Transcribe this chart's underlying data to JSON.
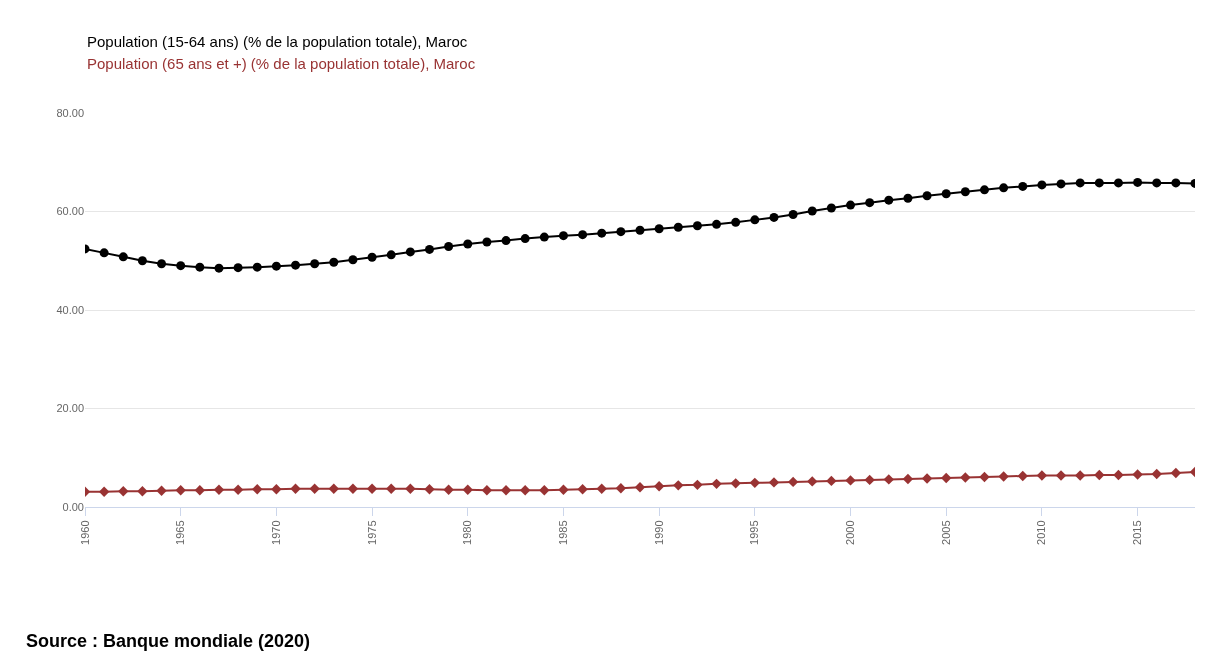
{
  "chart_data": {
    "type": "line",
    "x": [
      1960,
      1961,
      1962,
      1963,
      1964,
      1965,
      1966,
      1967,
      1968,
      1969,
      1970,
      1971,
      1972,
      1973,
      1974,
      1975,
      1976,
      1977,
      1978,
      1979,
      1980,
      1981,
      1982,
      1983,
      1984,
      1985,
      1986,
      1987,
      1988,
      1989,
      1990,
      1991,
      1992,
      1993,
      1994,
      1995,
      1996,
      1997,
      1998,
      1999,
      2000,
      2001,
      2002,
      2003,
      2004,
      2005,
      2006,
      2007,
      2008,
      2009,
      2010,
      2011,
      2012,
      2013,
      2014,
      2015,
      2016,
      2017,
      2018
    ],
    "series": [
      {
        "name": "Population (15-64 ans) (% de la population totale), Maroc",
        "color": "#000000",
        "marker": "circle",
        "values": [
          52.4,
          51.6,
          50.8,
          50.0,
          49.4,
          49.0,
          48.7,
          48.5,
          48.6,
          48.7,
          48.9,
          49.1,
          49.4,
          49.7,
          50.2,
          50.7,
          51.2,
          51.8,
          52.3,
          52.9,
          53.4,
          53.8,
          54.1,
          54.5,
          54.8,
          55.1,
          55.3,
          55.6,
          55.9,
          56.2,
          56.5,
          56.8,
          57.1,
          57.4,
          57.8,
          58.3,
          58.8,
          59.4,
          60.1,
          60.7,
          61.3,
          61.8,
          62.3,
          62.7,
          63.2,
          63.6,
          64.0,
          64.4,
          64.8,
          65.1,
          65.4,
          65.6,
          65.8,
          65.8,
          65.8,
          65.9,
          65.8,
          65.8,
          65.7
        ]
      },
      {
        "name": "Population (65 ans et +) (% de la population totale), Maroc",
        "color": "#993333",
        "marker": "diamond",
        "values": [
          3.1,
          3.1,
          3.2,
          3.2,
          3.3,
          3.4,
          3.4,
          3.5,
          3.5,
          3.6,
          3.6,
          3.7,
          3.7,
          3.7,
          3.7,
          3.7,
          3.7,
          3.7,
          3.6,
          3.5,
          3.5,
          3.4,
          3.4,
          3.4,
          3.4,
          3.5,
          3.6,
          3.7,
          3.8,
          4.0,
          4.2,
          4.4,
          4.5,
          4.7,
          4.8,
          4.9,
          5.0,
          5.1,
          5.2,
          5.3,
          5.4,
          5.5,
          5.6,
          5.7,
          5.8,
          5.9,
          6.0,
          6.1,
          6.2,
          6.3,
          6.4,
          6.4,
          6.4,
          6.5,
          6.5,
          6.6,
          6.7,
          6.9,
          7.1
        ]
      }
    ],
    "xlim": [
      1960,
      2018
    ],
    "xticks": [
      1960,
      1965,
      1970,
      1975,
      1980,
      1985,
      1990,
      1995,
      2000,
      2005,
      2010,
      2015
    ],
    "ylim": [
      0,
      80
    ],
    "yticks": [
      {
        "value": 0,
        "label": "0.00"
      },
      {
        "value": 20,
        "label": "20.00"
      },
      {
        "value": 40,
        "label": "40.00"
      },
      {
        "value": 60,
        "label": "60.00"
      },
      {
        "value": 80,
        "label": "80.00"
      }
    ],
    "grid": "y",
    "legend": "top left",
    "line_style": "solid",
    "annotations": [
      "Source : Banque mondiale (2020)"
    ]
  }
}
